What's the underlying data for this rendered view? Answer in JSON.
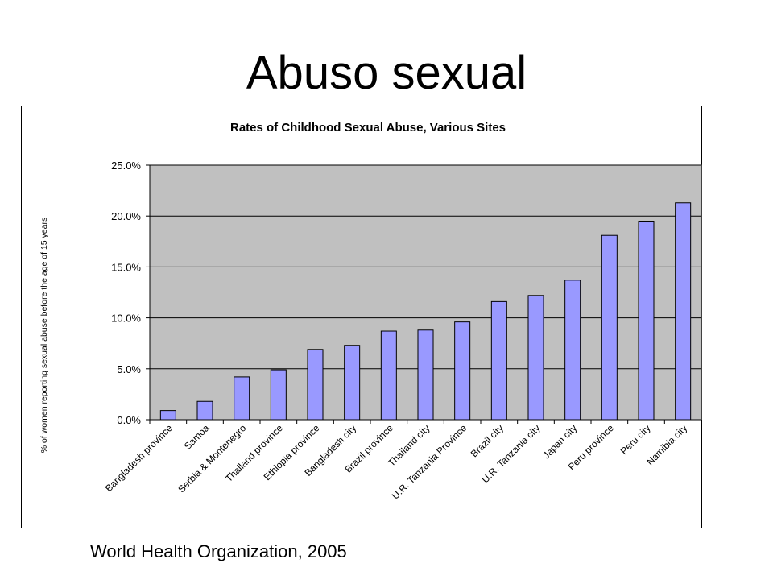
{
  "slide": {
    "title": "Abuso sexual",
    "citation": "World Health Organization, 2005"
  },
  "colors": {
    "plot_background": "#C0C0C0",
    "bar_fill": "#9999FF",
    "bar_stroke": "#000000",
    "gridline": "#000000"
  },
  "chart_data": {
    "type": "bar",
    "title": "Rates of Childhood Sexual Abuse, Various Sites",
    "xlabel": "",
    "ylabel": "% of women reporting sexual abuse before the age of 15 years",
    "ylim": [
      0,
      25
    ],
    "yticks": [
      0,
      5,
      10,
      15,
      20,
      25
    ],
    "ytick_labels": [
      "0.0%",
      "5.0%",
      "10.0%",
      "15.0%",
      "20.0%",
      "25.0%"
    ],
    "grid": true,
    "legend": "none",
    "categories": [
      "Bangladesh province",
      "Samoa",
      "Serbia & Montenegro",
      "Thailand province",
      "Ethiopia province",
      "Bangladesh city",
      "Brazil province",
      "Thailand city",
      "U.R. Tanzania Province",
      "Brazil city",
      "U.R. Tanzania city",
      "Japan city",
      "Peru province",
      "Peru city",
      "Namibia city"
    ],
    "values": [
      0.9,
      1.8,
      4.2,
      4.9,
      6.9,
      7.3,
      8.7,
      8.8,
      9.6,
      11.6,
      12.2,
      13.7,
      18.1,
      19.5,
      21.3
    ]
  }
}
